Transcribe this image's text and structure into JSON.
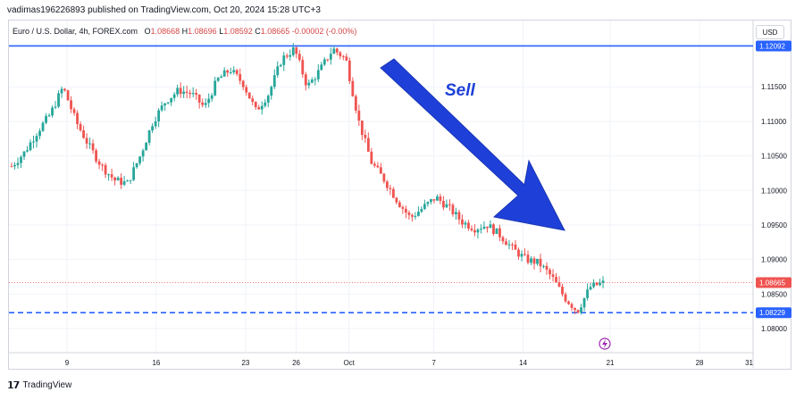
{
  "header": {
    "publisher_line": "vadimas196226893 published on TradingView.com, Oct 20, 2024 15:28 UTC+3"
  },
  "legend": {
    "symbol": "Euro / U.S. Dollar, 4h, FOREX.com",
    "open_label": "O",
    "open": "1.08668",
    "high_label": "H",
    "high": "1.08696",
    "low_label": "L",
    "low": "1.08592",
    "close_label": "C",
    "close": "1.08665",
    "change": "-0.00002 (-0.00%)"
  },
  "currency_button": "USD",
  "footer": {
    "brand": "TradingView"
  },
  "annotation": {
    "text": "Sell",
    "color": "#1e40d8"
  },
  "colors": {
    "up": "#26a69a",
    "down": "#ef5350",
    "level": "#2962ff",
    "price_line": "#ef5350"
  },
  "chart_data": {
    "type": "candlestick",
    "x_ticks": [
      "9",
      "16",
      "23",
      "26",
      "Oct",
      "7",
      "14",
      "21",
      "28",
      "31"
    ],
    "y_ticks": [
      "1.11500",
      "1.11000",
      "1.10500",
      "1.10000",
      "1.09500",
      "1.09000",
      "1.08500",
      "1.08000"
    ],
    "ylim": [
      1.0765,
      1.1246
    ],
    "levels": [
      {
        "value": 1.12092,
        "label": "1.12092",
        "style": "solid"
      },
      {
        "value": 1.08229,
        "label": "1.08229",
        "style": "dashed"
      }
    ],
    "current_price": {
      "value": 1.08665,
      "label": "1.08665"
    },
    "path": [
      1.1035,
      1.1055,
      1.1085,
      1.111,
      1.115,
      1.11,
      1.1065,
      1.1035,
      1.1015,
      1.101,
      1.105,
      1.11,
      1.113,
      1.1145,
      1.114,
      1.112,
      1.116,
      1.1175,
      1.1155,
      1.1115,
      1.114,
      1.119,
      1.1205,
      1.115,
      1.1175,
      1.1205,
      1.119,
      1.11,
      1.104,
      1.1015,
      1.0985,
      1.096,
      1.0975,
      1.099,
      1.0975,
      1.0955,
      1.0945,
      1.095,
      1.0935,
      1.0915,
      1.09,
      1.0895,
      1.0875,
      1.0845,
      1.0825,
      1.086,
      1.0866
    ],
    "x_last": 0.808
  }
}
